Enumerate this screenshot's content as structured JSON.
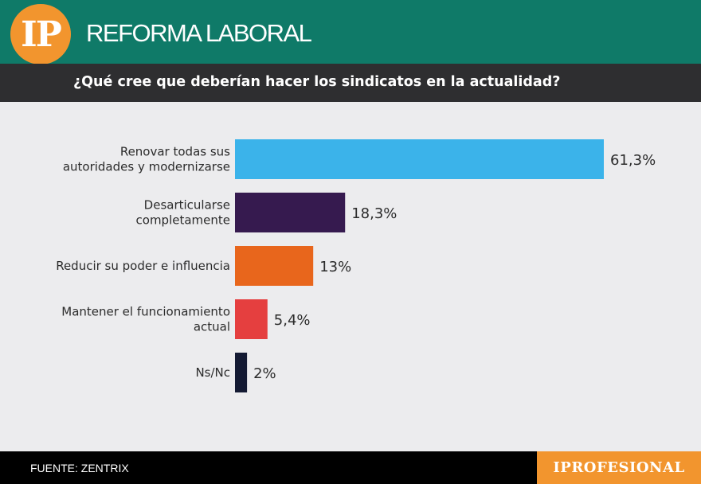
{
  "header": {
    "logo_text": "IP",
    "title": "REFORMA LABORAL"
  },
  "chart_data": {
    "type": "bar",
    "orientation": "horizontal",
    "title": "¿Qué cree que deberían hacer los sindicatos en la actualidad?",
    "unit": "%",
    "xlim": [
      0,
      61.3
    ],
    "categories": [
      [
        "Renovar todas sus",
        "autoridades y modernizarse"
      ],
      [
        "Desarticularse",
        "completamente"
      ],
      [
        "Reducir su poder e influencia"
      ],
      [
        "Mantener el funcionamiento",
        "actual"
      ],
      [
        "Ns/Nc"
      ]
    ],
    "values": [
      61.3,
      18.3,
      13,
      5.4,
      2
    ],
    "value_labels": [
      "61,3%",
      "18,3%",
      "13%",
      "5,4%",
      "2%"
    ],
    "colors": [
      "#3bb3ea",
      "#361a4f",
      "#e8661c",
      "#e53f3f",
      "#141a33"
    ]
  },
  "footer": {
    "source": "FUENTE: ZENTRIX",
    "brand": "IPROFESIONAL"
  }
}
